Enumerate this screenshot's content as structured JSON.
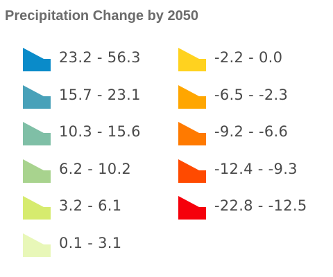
{
  "legend": {
    "title": "Precipitation Change by 2050",
    "columns": [
      {
        "items": [
          {
            "label": "23.2 - 56.3",
            "color": "#0a8bc9"
          },
          {
            "label": "15.7 - 23.1",
            "color": "#48a1b9"
          },
          {
            "label": "10.3 - 15.6",
            "color": "#7fbfa6"
          },
          {
            "label": "6.2 - 10.2",
            "color": "#a8d38e"
          },
          {
            "label": "3.2 - 6.1",
            "color": "#d6eb6e"
          },
          {
            "label": "0.1 - 3.1",
            "color": "#e8f7b8"
          }
        ]
      },
      {
        "items": [
          {
            "label": "-2.2 - 0.0",
            "color": "#ffd21f"
          },
          {
            "label": "-6.5 - -2.3",
            "color": "#ffa600"
          },
          {
            "label": "-9.2 - -6.6",
            "color": "#ff7a00"
          },
          {
            "label": "-12.4 - -9.3",
            "color": "#ff4a00"
          },
          {
            "label": "-22.8 - -12.5",
            "color": "#f5000b"
          }
        ]
      }
    ]
  }
}
